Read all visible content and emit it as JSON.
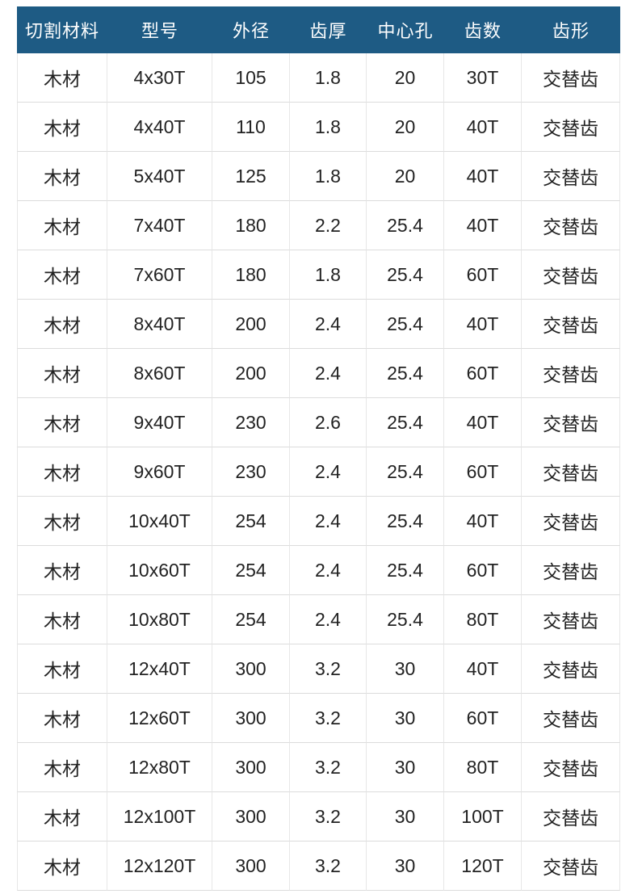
{
  "chart_data": {
    "type": "table",
    "columns": [
      "切割材料",
      "型号",
      "外径",
      "齿厚",
      "中心孔",
      "齿数",
      "齿形"
    ],
    "rows": [
      [
        "木材",
        "4x30T",
        "105",
        "1.8",
        "20",
        "30T",
        "交替齿"
      ],
      [
        "木材",
        "4x40T",
        "110",
        "1.8",
        "20",
        "40T",
        "交替齿"
      ],
      [
        "木材",
        "5x40T",
        "125",
        "1.8",
        "20",
        "40T",
        "交替齿"
      ],
      [
        "木材",
        "7x40T",
        "180",
        "2.2",
        "25.4",
        "40T",
        "交替齿"
      ],
      [
        "木材",
        "7x60T",
        "180",
        "1.8",
        "25.4",
        "60T",
        "交替齿"
      ],
      [
        "木材",
        "8x40T",
        "200",
        "2.4",
        "25.4",
        "40T",
        "交替齿"
      ],
      [
        "木材",
        "8x60T",
        "200",
        "2.4",
        "25.4",
        "60T",
        "交替齿"
      ],
      [
        "木材",
        "9x40T",
        "230",
        "2.6",
        "25.4",
        "40T",
        "交替齿"
      ],
      [
        "木材",
        "9x60T",
        "230",
        "2.4",
        "25.4",
        "60T",
        "交替齿"
      ],
      [
        "木材",
        "10x40T",
        "254",
        "2.4",
        "25.4",
        "40T",
        "交替齿"
      ],
      [
        "木材",
        "10x60T",
        "254",
        "2.4",
        "25.4",
        "60T",
        "交替齿"
      ],
      [
        "木材",
        "10x80T",
        "254",
        "2.4",
        "25.4",
        "80T",
        "交替齿"
      ],
      [
        "木材",
        "12x40T",
        "300",
        "3.2",
        "30",
        "40T",
        "交替齿"
      ],
      [
        "木材",
        "12x60T",
        "300",
        "3.2",
        "30",
        "60T",
        "交替齿"
      ],
      [
        "木材",
        "12x80T",
        "300",
        "3.2",
        "30",
        "80T",
        "交替齿"
      ],
      [
        "木材",
        "12x100T",
        "300",
        "3.2",
        "30",
        "100T",
        "交替齿"
      ],
      [
        "木材",
        "12x120T",
        "300",
        "3.2",
        "30",
        "120T",
        "交替齿"
      ]
    ]
  },
  "colors": {
    "header_bg": "#1e5b84",
    "header_text": "#ffffff",
    "body_text": "#222222",
    "grid_line_vertical": "#e7e7e7",
    "grid_line_horizontal": "#dcdcdc",
    "page_bg": "#ffffff"
  }
}
